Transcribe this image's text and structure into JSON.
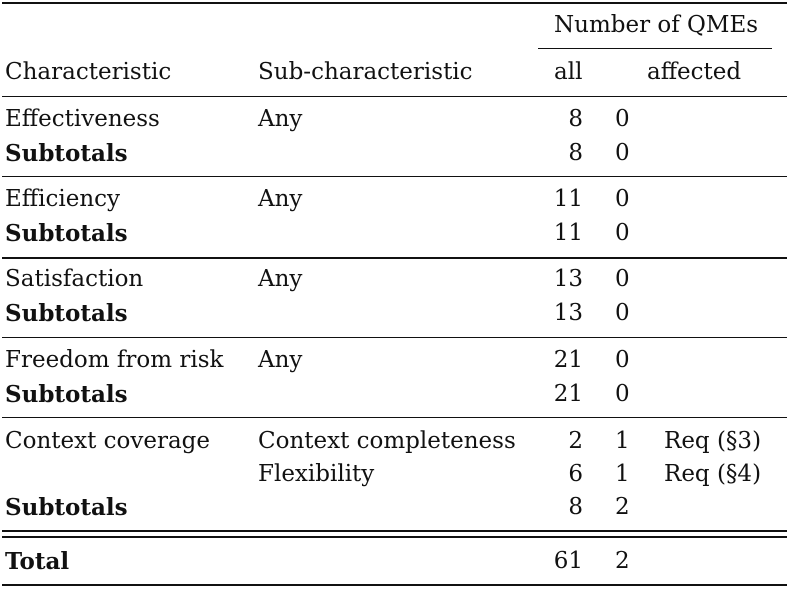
{
  "header": {
    "group_label": "Number of QMEs",
    "col_characteristic": "Characteristic",
    "col_subcharacteristic": "Sub-characteristic",
    "col_all": "all",
    "col_affected": "affected"
  },
  "groups": [
    {
      "rows": [
        {
          "characteristic": "Effectiveness",
          "sub": "Any",
          "all": "8",
          "affected": "0",
          "note": ""
        }
      ],
      "subtotal": {
        "label": "Subtotals",
        "all": "8",
        "affected": "0"
      }
    },
    {
      "rows": [
        {
          "characteristic": "Efficiency",
          "sub": "Any",
          "all": "11",
          "affected": "0",
          "note": ""
        }
      ],
      "subtotal": {
        "label": "Subtotals",
        "all": "11",
        "affected": "0"
      }
    },
    {
      "rows": [
        {
          "characteristic": "Satisfaction",
          "sub": "Any",
          "all": "13",
          "affected": "0",
          "note": ""
        }
      ],
      "subtotal": {
        "label": "Subtotals",
        "all": "13",
        "affected": "0"
      }
    },
    {
      "rows": [
        {
          "characteristic": "Freedom from risk",
          "sub": "Any",
          "all": "21",
          "affected": "0",
          "note": ""
        }
      ],
      "subtotal": {
        "label": "Subtotals",
        "all": "21",
        "affected": "0"
      }
    },
    {
      "rows": [
        {
          "characteristic": "Context coverage",
          "sub": "Context completeness",
          "all": "2",
          "affected": "1",
          "note": "Req (§3)"
        },
        {
          "characteristic": "",
          "sub": "Flexibility",
          "all": "6",
          "affected": "1",
          "note": "Req (§4)"
        }
      ],
      "subtotal": {
        "label": "Subtotals",
        "all": "8",
        "affected": "2"
      }
    }
  ],
  "total": {
    "label": "Total",
    "all": "61",
    "affected": "2"
  }
}
